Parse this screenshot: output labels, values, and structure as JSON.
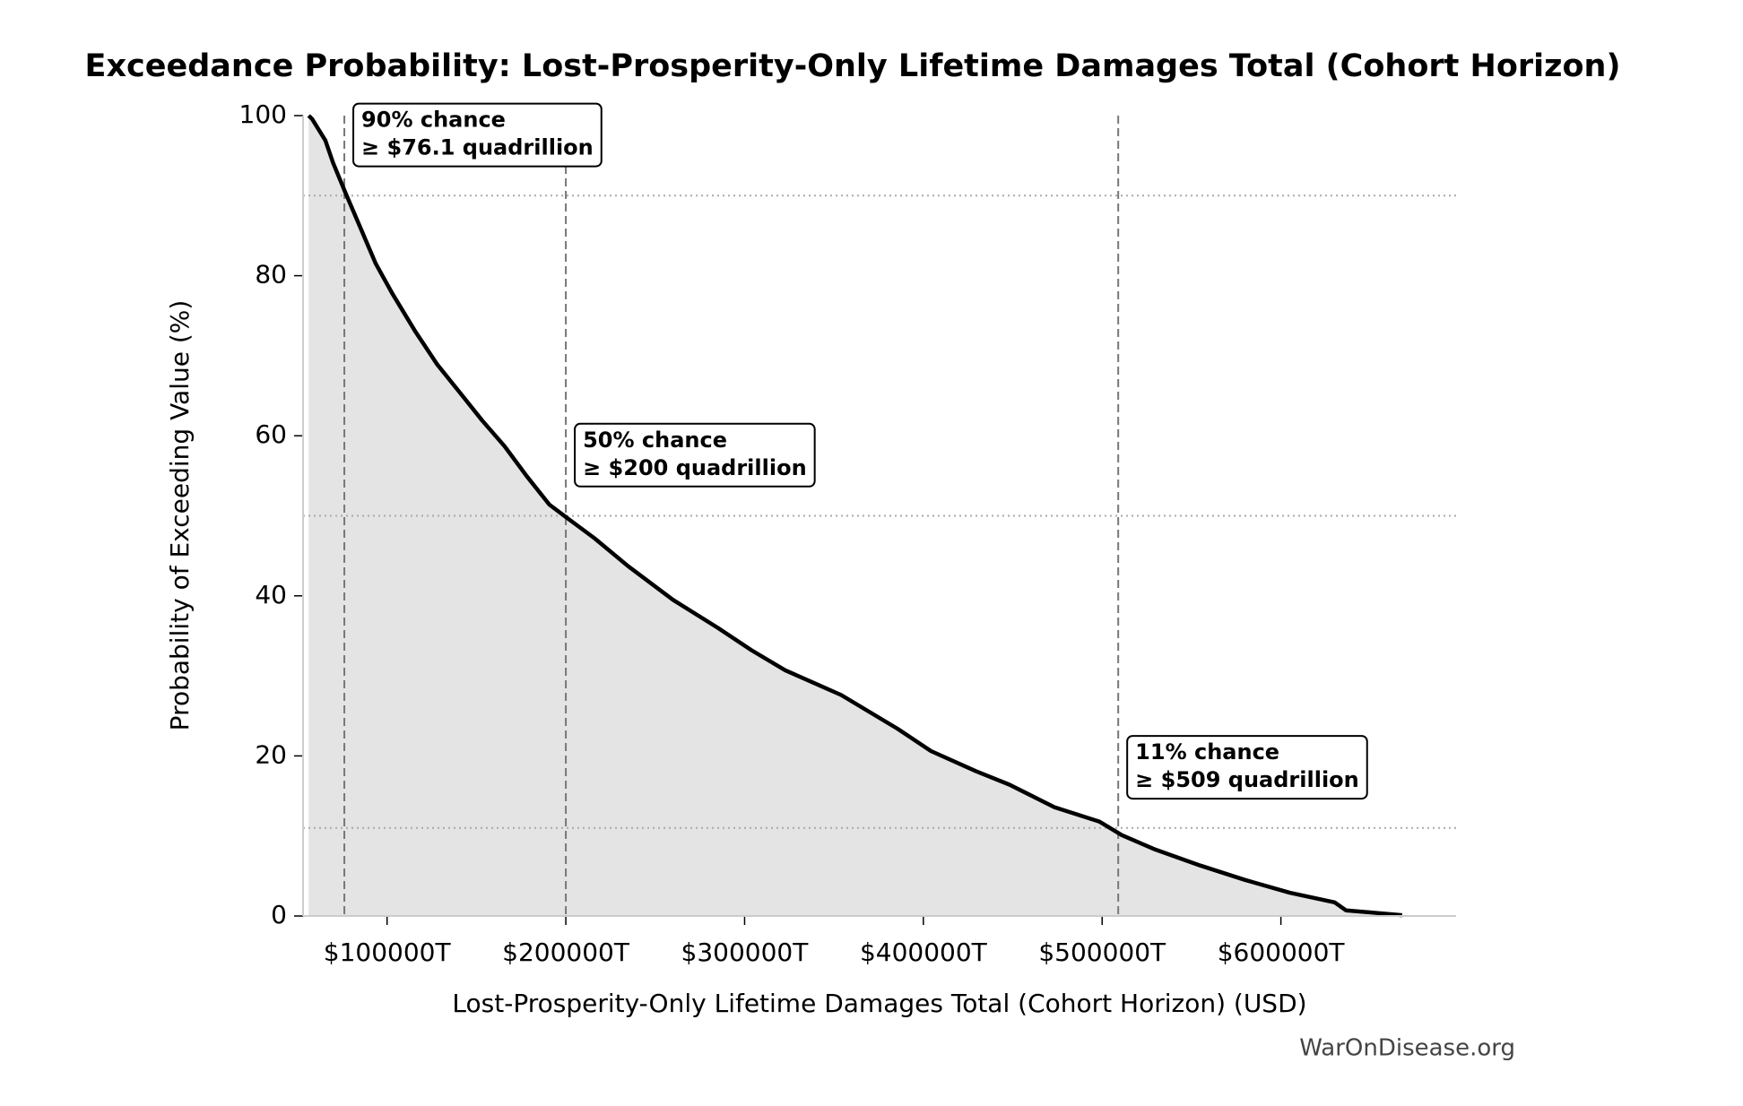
{
  "chart_data": {
    "type": "exceedance",
    "title": "Exceedance Probability: Lost-Prosperity-Only Lifetime Damages Total (Cohort Horizon)",
    "xlabel": "Lost-Prosperity-Only Lifetime Damages Total (Cohort Horizon) (USD)",
    "ylabel": "Probability of Exceeding Value (%)",
    "watermark": "WarOnDisease.org",
    "x": [
      56100,
      58000,
      65500,
      69800,
      76800,
      84300,
      93700,
      103100,
      115600,
      128100,
      140700,
      153200,
      165700,
      178300,
      190800,
      200900,
      216000,
      234900,
      260000,
      285000,
      303900,
      322700,
      354100,
      385500,
      404300,
      429400,
      448200,
      473300,
      498400,
      511000,
      529800,
      554900,
      580000,
      605000,
      630100,
      636400,
      667800
    ],
    "values": [
      100,
      99.6,
      96.9,
      94.1,
      90.3,
      86.4,
      81.5,
      77.7,
      73.1,
      68.9,
      65.4,
      61.9,
      58.7,
      54.9,
      51.4,
      49.7,
      47.2,
      43.7,
      39.5,
      36.0,
      33.2,
      30.7,
      27.6,
      23.4,
      20.6,
      18.1,
      16.4,
      13.6,
      11.8,
      10.1,
      8.3,
      6.3,
      4.5,
      2.9,
      1.7,
      0.7,
      0.1
    ],
    "color": "#000000",
    "fill_color": "#e4e4e4",
    "xlim": [
      53000,
      698000
    ],
    "ylim": [
      0,
      100
    ],
    "xticks": [
      {
        "value": 100000,
        "label": "$100000T"
      },
      {
        "value": 200000,
        "label": "$200000T"
      },
      {
        "value": 300000,
        "label": "$300000T"
      },
      {
        "value": 400000,
        "label": "$400000T"
      },
      {
        "value": 500000,
        "label": "$500000T"
      },
      {
        "value": 600000,
        "label": "$600000T"
      }
    ],
    "yticks": [
      0,
      20,
      40,
      60,
      80,
      100
    ],
    "markers": [
      {
        "probability": 90,
        "value": 76100,
        "label": [
          "90% chance",
          "≥ $76.1 quadrillion"
        ]
      },
      {
        "probability": 50,
        "value": 200000,
        "label": [
          "50% chance",
          "≥ $200 quadrillion"
        ]
      },
      {
        "probability": 11,
        "value": 509000,
        "label": [
          "11% chance",
          "≥ $509 quadrillion"
        ]
      }
    ]
  }
}
